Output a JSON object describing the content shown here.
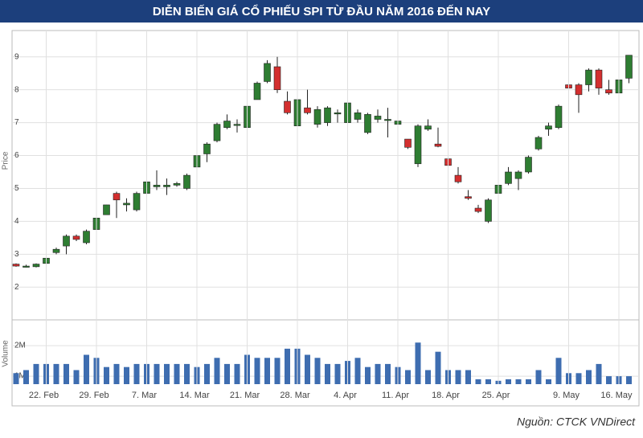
{
  "title": "DIỄN BIẾN GIÁ CỔ PHIẾU SPI TỪ ĐẦU NĂM 2016 ĐẾN NAY",
  "source": "Nguồn: CTCK VNDirect",
  "chart_data": [
    {
      "type": "candlestick",
      "y_label": "Price",
      "up_color": "#2e7d32",
      "down_color": "#d32f2f",
      "grid": true,
      "ylim": [
        1.2,
        9.8
      ],
      "yticks": [
        2,
        3,
        4,
        5,
        6,
        7,
        8,
        9
      ],
      "open": [
        2.7,
        2.64,
        2.62,
        2.72,
        3.05,
        3.25,
        3.55,
        3.35,
        3.75,
        4.2,
        4.85,
        4.5,
        4.35,
        4.85,
        5.05,
        5.05,
        5.1,
        5.0,
        5.65,
        6.05,
        6.45,
        6.85,
        6.95,
        6.85,
        7.7,
        8.25,
        8.7,
        7.65,
        6.9,
        7.45,
        6.95,
        7.0,
        7.3,
        7.0,
        7.1,
        6.7,
        7.1,
        7.1,
        6.95,
        6.5,
        5.75,
        6.8,
        6.35,
        5.9,
        5.4,
        4.75,
        4.4,
        4.0,
        4.85,
        5.15,
        5.3,
        5.5,
        6.2,
        6.8,
        6.85,
        8.15,
        8.15,
        8.15,
        8.6,
        8.0,
        7.9,
        8.35
      ],
      "high": [
        2.72,
        2.68,
        2.72,
        2.9,
        3.2,
        3.6,
        3.6,
        3.75,
        4.15,
        4.5,
        4.9,
        4.7,
        4.9,
        5.3,
        5.55,
        5.3,
        5.2,
        5.45,
        6.05,
        6.4,
        7.0,
        7.25,
        7.1,
        7.55,
        8.25,
        8.9,
        9.0,
        7.95,
        7.75,
        8.0,
        7.5,
        7.5,
        7.4,
        7.65,
        7.4,
        7.3,
        7.4,
        7.45,
        7.2,
        6.5,
        6.95,
        7.1,
        6.85,
        5.95,
        5.65,
        4.95,
        4.5,
        4.7,
        5.15,
        5.65,
        5.55,
        6.0,
        6.6,
        7.0,
        7.55,
        8.2,
        8.2,
        8.65,
        8.65,
        8.3,
        8.35,
        9.05
      ],
      "low": [
        2.62,
        2.6,
        2.6,
        2.7,
        3.0,
        3.0,
        3.4,
        3.3,
        3.75,
        4.2,
        4.1,
        4.3,
        4.3,
        4.8,
        4.95,
        4.8,
        5.05,
        4.95,
        5.6,
        5.8,
        6.4,
        6.8,
        6.7,
        6.45,
        7.7,
        8.2,
        7.9,
        7.25,
        6.6,
        7.25,
        6.85,
        6.9,
        7.0,
        6.85,
        7.0,
        6.65,
        7.0,
        6.55,
        6.9,
        6.2,
        5.65,
        6.75,
        6.25,
        5.65,
        5.15,
        4.65,
        4.25,
        3.95,
        4.8,
        5.1,
        4.95,
        5.45,
        6.15,
        6.6,
        6.8,
        7.7,
        7.3,
        7.95,
        7.85,
        7.85,
        7.85,
        8.2
      ],
      "close": [
        2.64,
        2.64,
        2.7,
        2.88,
        3.15,
        3.55,
        3.45,
        3.7,
        4.1,
        4.5,
        4.65,
        4.55,
        4.85,
        5.2,
        5.1,
        5.1,
        5.15,
        5.4,
        6.0,
        6.35,
        6.95,
        7.05,
        6.95,
        7.5,
        8.2,
        8.8,
        8.0,
        7.3,
        7.7,
        7.3,
        7.4,
        7.45,
        7.3,
        7.6,
        7.3,
        7.25,
        7.2,
        7.1,
        7.05,
        6.25,
        6.9,
        6.9,
        6.28,
        5.7,
        5.2,
        4.7,
        4.3,
        4.65,
        5.1,
        5.5,
        5.5,
        5.95,
        6.55,
        6.9,
        7.5,
        8.05,
        7.85,
        8.6,
        8.05,
        7.9,
        8.3,
        9.05
      ]
    },
    {
      "type": "bar",
      "y_label": "Volume",
      "color": "#3e6db0",
      "grid": true,
      "ylim": [
        740000,
        2580000
      ],
      "yticks": [
        {
          "value": 1000000,
          "label": "1M"
        },
        {
          "value": 2000000,
          "label": "2M"
        }
      ],
      "categories": [
        null,
        null,
        null,
        "22. Feb",
        null,
        null,
        null,
        null,
        "29. Feb",
        null,
        null,
        null,
        null,
        "7. Mar",
        null,
        null,
        null,
        null,
        "14. Mar",
        null,
        null,
        null,
        null,
        "21. Mar",
        null,
        null,
        null,
        null,
        "28. Mar",
        null,
        null,
        null,
        null,
        "4. Apr",
        null,
        null,
        null,
        null,
        "11. Apr",
        null,
        null,
        null,
        null,
        "18. Apr",
        null,
        null,
        null,
        null,
        "25. Apr",
        null,
        null,
        null,
        null,
        null,
        null,
        "9. May",
        null,
        null,
        null,
        null,
        "16. May",
        null
      ],
      "values": [
        1100000,
        1200000,
        1400000,
        1400000,
        1400000,
        1400000,
        1200000,
        1700000,
        1600000,
        1300000,
        1400000,
        1300000,
        1400000,
        1400000,
        1400000,
        1400000,
        1400000,
        1400000,
        1300000,
        1400000,
        1600000,
        1400000,
        1400000,
        1700000,
        1600000,
        1600000,
        1600000,
        1900000,
        1900000,
        1700000,
        1600000,
        1400000,
        1400000,
        1500000,
        1600000,
        1300000,
        1400000,
        1400000,
        1300000,
        1200000,
        2100000,
        1200000,
        1800000,
        1200000,
        1200000,
        1200000,
        900000,
        900000,
        850000,
        900000,
        900000,
        900000,
        1200000,
        900000,
        1600000,
        1100000,
        1100000,
        1200000,
        1400000,
        1000000,
        1000000,
        1000000
      ]
    }
  ]
}
